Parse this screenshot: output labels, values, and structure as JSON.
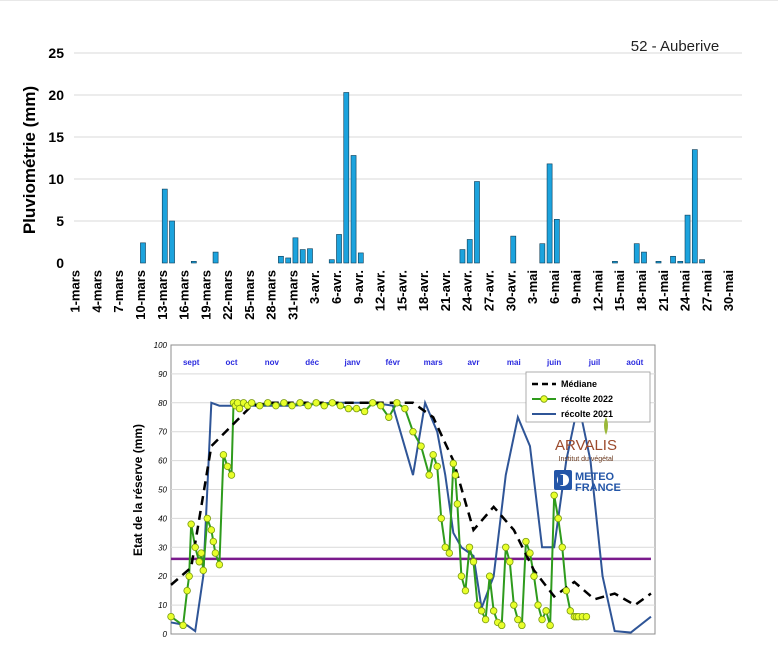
{
  "chart_data": [
    {
      "type": "bar",
      "title": "52 - Auberive",
      "ylabel": "Pluviométrie (mm)",
      "ylim": [
        0,
        25
      ],
      "yticks": [
        0,
        5,
        10,
        15,
        20,
        25
      ],
      "grid": true,
      "xtick_labels": [
        "1-mars",
        "4-mars",
        "7-mars",
        "10-mars",
        "13-mars",
        "16-mars",
        "19-mars",
        "22-mars",
        "25-mars",
        "28-mars",
        "31-mars",
        "3-avr.",
        "6-avr.",
        "9-avr.",
        "12-avr.",
        "15-avr.",
        "18-avr.",
        "21-avr.",
        "24-avr.",
        "27-avr.",
        "30-avr.",
        "3-mai",
        "6-mai",
        "9-mai",
        "12-mai",
        "15-mai",
        "18-mai",
        "21-mai",
        "24-mai",
        "27-mai",
        "30-mai"
      ],
      "values": [
        0,
        0,
        0,
        0,
        0,
        0,
        0,
        0,
        0,
        2.4,
        0,
        0,
        8.8,
        5.0,
        0,
        0,
        0.2,
        0,
        0,
        1.3,
        0,
        0,
        0,
        0,
        0,
        0,
        0,
        0,
        0.8,
        0.6,
        3.0,
        1.6,
        1.7,
        0,
        0,
        0.4,
        3.4,
        20.3,
        12.8,
        1.2,
        0,
        0,
        0,
        0,
        0,
        0,
        0,
        0,
        0,
        0,
        0,
        0,
        0,
        1.6,
        2.8,
        9.7,
        0,
        0,
        0,
        0,
        3.2,
        0,
        0,
        0,
        2.3,
        11.8,
        5.2,
        0,
        0,
        0,
        0,
        0,
        0,
        0,
        0.2,
        0,
        0,
        2.3,
        1.3,
        0,
        0.2,
        0,
        0.8,
        0.2,
        5.7,
        13.5,
        0.4,
        0,
        0,
        0,
        0,
        0
      ],
      "bar_color": "#1CA3DD"
    },
    {
      "type": "line",
      "ylabel": "Etat de la réserve (mm)",
      "ylim": [
        0,
        100
      ],
      "yticks": [
        0,
        10,
        20,
        30,
        40,
        50,
        60,
        70,
        80,
        90,
        100
      ],
      "months": [
        "sept",
        "oct",
        "nov",
        "déc",
        "janv",
        "févr",
        "mars",
        "avr",
        "mai",
        "juin",
        "juil",
        "août"
      ],
      "reference_line": 26,
      "series": [
        {
          "name": "Médiane",
          "color": "#000000",
          "style": "dashed",
          "x": [
            0,
            0.5,
            1,
            1.5,
            2,
            2.5,
            3,
            4,
            5,
            6,
            6.5,
            7,
            7.5,
            8,
            8.5,
            9,
            9.5,
            10,
            10.5,
            11,
            11.5,
            11.9
          ],
          "y": [
            17,
            23,
            65,
            72,
            79,
            80,
            80,
            80,
            80,
            80,
            75,
            60,
            36,
            44,
            36,
            22,
            13,
            18,
            12,
            14,
            10,
            14
          ]
        },
        {
          "name": "récolte 2022",
          "color": "#2E9B1C",
          "marker_fill": "#E8FF2A",
          "style": "solid+markers",
          "x": [
            0,
            0.3,
            0.4,
            0.45,
            0.5,
            0.6,
            0.7,
            0.75,
            0.8,
            0.9,
            1.0,
            1.05,
            1.1,
            1.2,
            1.3,
            1.4,
            1.5,
            1.55,
            1.6,
            1.65,
            1.7,
            1.8,
            1.9,
            2.0,
            2.2,
            2.4,
            2.6,
            2.8,
            3.0,
            3.2,
            3.4,
            3.6,
            3.8,
            4.0,
            4.2,
            4.4,
            4.6,
            4.8,
            5.0,
            5.2,
            5.4,
            5.6,
            5.8,
            6.0,
            6.2,
            6.4,
            6.5,
            6.6,
            6.7,
            6.8,
            6.9,
            7.0,
            7.05,
            7.1,
            7.2,
            7.3,
            7.4,
            7.5,
            7.6,
            7.7,
            7.8,
            7.9,
            8.0,
            8.1,
            8.2,
            8.3,
            8.4,
            8.5,
            8.6,
            8.7,
            8.8,
            8.9,
            9.0,
            9.1,
            9.2,
            9.3,
            9.4,
            9.5,
            9.6,
            9.7,
            9.8,
            9.9,
            10.0,
            10.05,
            10.1,
            10.2,
            10.3
          ],
          "y": [
            6,
            3,
            15,
            20,
            38,
            30,
            25,
            28,
            22,
            40,
            36,
            32,
            28,
            24,
            62,
            58,
            55,
            80,
            79,
            80,
            78,
            80,
            79,
            80,
            79,
            80,
            79,
            80,
            79,
            80,
            79,
            80,
            79,
            80,
            79,
            78,
            78,
            77,
            80,
            79,
            75,
            80,
            78,
            70,
            65,
            55,
            62,
            58,
            40,
            30,
            28,
            59,
            55,
            45,
            20,
            15,
            30,
            25,
            10,
            8,
            5,
            20,
            8,
            4,
            3,
            30,
            25,
            10,
            5,
            3,
            32,
            28,
            20,
            10,
            5,
            8,
            3,
            48,
            40,
            30,
            15,
            8,
            6,
            6,
            6,
            6,
            6
          ]
        },
        {
          "name": "récolte 2021",
          "color": "#2F5597",
          "style": "solid",
          "x": [
            0,
            0.4,
            0.6,
            0.8,
            1.0,
            1.2,
            1.5,
            2.0,
            3.0,
            4.0,
            5.0,
            5.5,
            6.0,
            6.3,
            6.6,
            6.8,
            7.0,
            7.2,
            7.5,
            7.7,
            8.0,
            8.3,
            8.6,
            8.9,
            9.2,
            9.5,
            9.8,
            10.1,
            10.4,
            10.7,
            11.0,
            11.4,
            11.9
          ],
          "y": [
            4,
            3,
            1,
            20,
            80,
            79,
            79,
            79,
            79,
            80,
            80,
            79,
            55,
            80,
            70,
            55,
            35,
            30,
            27,
            9,
            20,
            55,
            75,
            65,
            30,
            30,
            60,
            80,
            60,
            20,
            1,
            0.5,
            6
          ]
        }
      ]
    }
  ],
  "logos": {
    "arvalis_name": "ARVALIS",
    "arvalis_tagline": "Institut du végétal",
    "meteo_line1": "METEO",
    "meteo_line2": "FRANCE"
  }
}
